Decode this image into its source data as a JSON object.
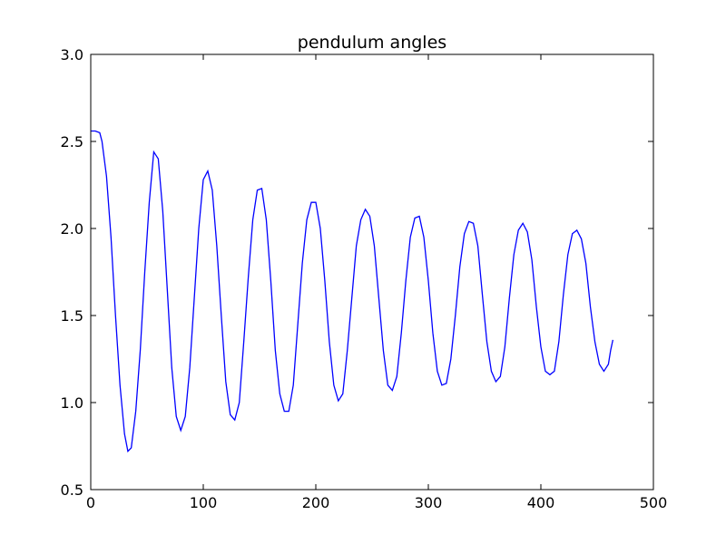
{
  "chart_data": {
    "type": "line",
    "title": "pendulum angles",
    "xlabel": "",
    "ylabel": "",
    "xlim": [
      0,
      500
    ],
    "ylim": [
      0.5,
      3.0
    ],
    "xticks": [
      0,
      100,
      200,
      300,
      400,
      500
    ],
    "yticks": [
      0.5,
      1.0,
      1.5,
      2.0,
      2.5,
      3.0
    ],
    "xtick_labels": [
      "0",
      "100",
      "200",
      "300",
      "400",
      "500"
    ],
    "ytick_labels": [
      "0.5",
      "1.0",
      "1.5",
      "2.0",
      "2.5",
      "3.0"
    ],
    "grid": false,
    "line_color": "#0000ff",
    "series": [
      {
        "x": [
          0,
          4,
          8,
          10,
          14,
          18,
          22,
          26,
          30,
          33,
          36,
          40,
          44,
          48,
          52,
          56,
          60,
          64,
          68,
          72,
          76,
          80,
          84,
          88,
          92,
          96,
          100,
          104,
          108,
          112,
          116,
          120,
          124,
          128,
          132,
          136,
          140,
          144,
          148,
          152,
          156,
          160,
          164,
          168,
          172,
          176,
          180,
          184,
          188,
          192,
          196,
          200,
          204,
          208,
          212,
          216,
          220,
          224,
          228,
          232,
          236,
          240,
          244,
          248,
          252,
          256,
          260,
          264,
          268,
          272,
          276,
          280,
          284,
          288,
          292,
          296,
          300,
          304,
          308,
          312,
          316,
          320,
          324,
          328,
          332,
          336,
          340,
          344,
          348,
          352,
          356,
          360,
          364,
          368,
          372,
          376,
          380,
          384,
          388,
          392,
          396,
          400,
          404,
          408,
          412,
          416,
          420,
          424,
          428,
          432,
          436,
          440,
          444,
          448,
          452,
          456,
          460,
          462,
          464
        ],
        "y": [
          2.56,
          2.56,
          2.55,
          2.5,
          2.3,
          1.95,
          1.5,
          1.1,
          0.82,
          0.72,
          0.74,
          0.95,
          1.3,
          1.75,
          2.15,
          2.44,
          2.4,
          2.1,
          1.65,
          1.2,
          0.92,
          0.84,
          0.92,
          1.2,
          1.6,
          2.0,
          2.28,
          2.33,
          2.22,
          1.9,
          1.5,
          1.12,
          0.93,
          0.9,
          1.0,
          1.35,
          1.72,
          2.05,
          2.22,
          2.23,
          2.05,
          1.7,
          1.3,
          1.05,
          0.95,
          0.95,
          1.1,
          1.45,
          1.8,
          2.05,
          2.15,
          2.15,
          2.0,
          1.7,
          1.35,
          1.1,
          1.01,
          1.05,
          1.3,
          1.6,
          1.9,
          2.05,
          2.11,
          2.07,
          1.9,
          1.6,
          1.3,
          1.1,
          1.07,
          1.15,
          1.4,
          1.7,
          1.95,
          2.06,
          2.07,
          1.95,
          1.7,
          1.4,
          1.18,
          1.1,
          1.11,
          1.25,
          1.5,
          1.78,
          1.97,
          2.04,
          2.03,
          1.9,
          1.62,
          1.35,
          1.18,
          1.12,
          1.15,
          1.32,
          1.6,
          1.85,
          1.99,
          2.03,
          1.98,
          1.82,
          1.55,
          1.32,
          1.18,
          1.16,
          1.18,
          1.35,
          1.62,
          1.85,
          1.97,
          1.99,
          1.94,
          1.8,
          1.55,
          1.35,
          1.22,
          1.18,
          1.22,
          1.3,
          1.36
        ]
      }
    ]
  }
}
